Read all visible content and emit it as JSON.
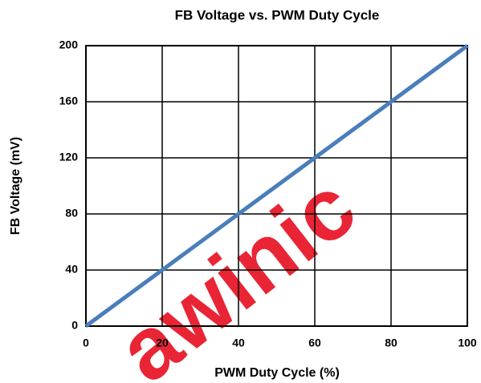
{
  "chart_data": {
    "type": "line",
    "title": "FB Voltage vs. PWM Duty Cycle",
    "x_label": "PWM Duty Cycle (%)",
    "y_label": "FB Voltage (mV)",
    "watermark": "awinic",
    "x": [
      0,
      20,
      40,
      60,
      80,
      100
    ],
    "series": [
      {
        "name": "FB Voltage",
        "color": "#4a7ebb",
        "values": [
          0,
          40,
          80,
          120,
          160,
          200
        ]
      }
    ],
    "xlim": [
      0,
      100
    ],
    "xticks": [
      0,
      20,
      40,
      60,
      80,
      100
    ],
    "ylim": [
      0,
      200
    ],
    "yticks": [
      0,
      40,
      80,
      120,
      160,
      200
    ],
    "grid": true
  }
}
